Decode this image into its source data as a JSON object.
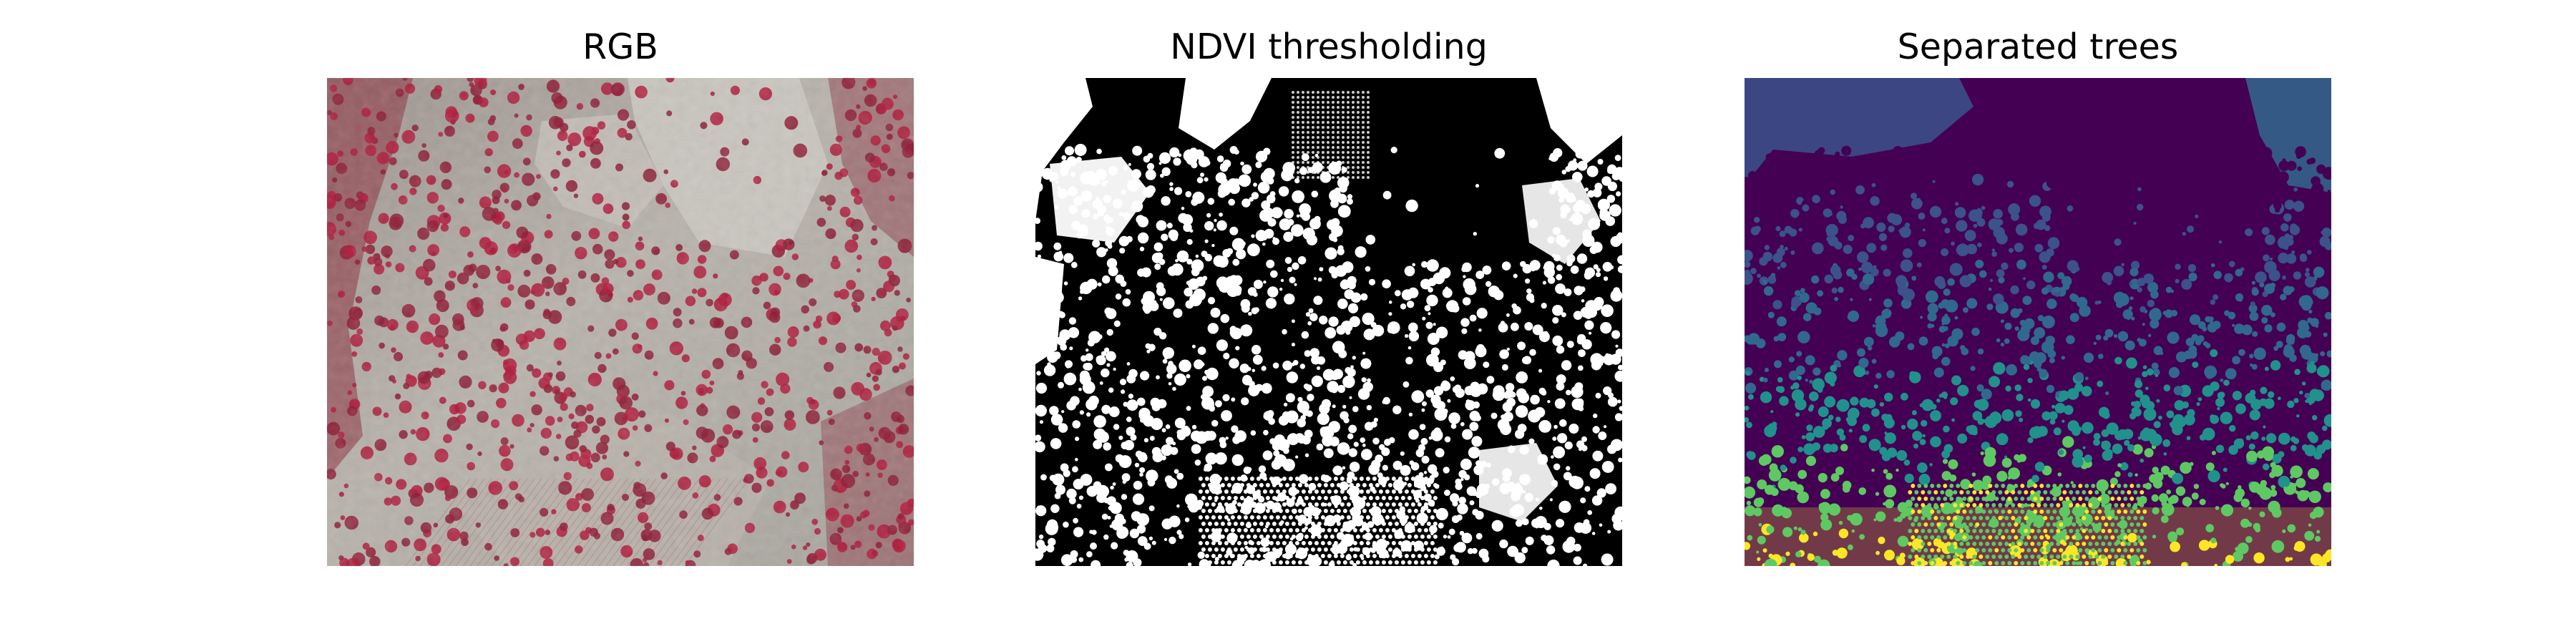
{
  "figure": {
    "panels": [
      {
        "id": "rgb",
        "title": "RGB"
      },
      {
        "id": "ndvi",
        "title": "NDVI thresholding"
      },
      {
        "id": "sep",
        "title": "Separated trees"
      }
    ]
  },
  "colors": {
    "rgb_ground": "#a6a29a",
    "rgb_field_light": "#c9c6bf",
    "rgb_trees": "#b0173a",
    "ndvi_background": "#000000",
    "ndvi_foreground": "#ffffff",
    "viridis_dark": "#440154",
    "viridis_blue": "#31688e",
    "viridis_teal": "#21918c",
    "viridis_green": "#5ec962",
    "viridis_yellow": "#fde725"
  }
}
